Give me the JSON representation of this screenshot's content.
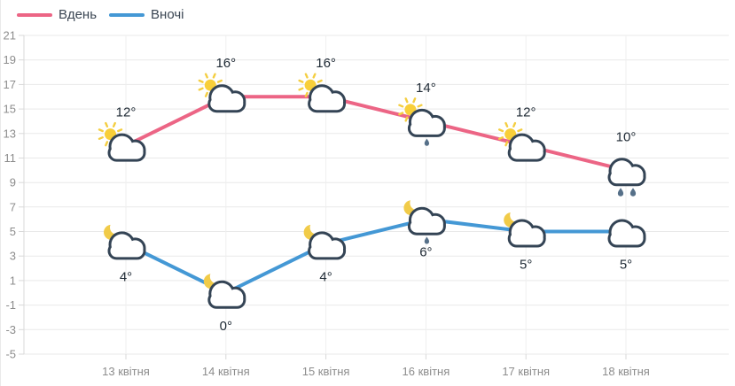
{
  "legend": {
    "items": [
      {
        "label": "Вдень",
        "color": "#ec6585"
      },
      {
        "label": "Вночі",
        "color": "#4498d5"
      }
    ]
  },
  "chart_data": {
    "type": "line",
    "title": "",
    "xlabel": "",
    "ylabel": "",
    "categories": [
      "13 квітня",
      "14 квітня",
      "15 квітня",
      "16 квітня",
      "17 квітня",
      "18 квітня"
    ],
    "series": [
      {
        "name": "Вдень",
        "color": "#ec6585",
        "values": [
          12,
          16,
          16,
          14,
          12,
          10
        ],
        "labels": [
          "12°",
          "16°",
          "16°",
          "14°",
          "12°",
          "10°"
        ],
        "icons": [
          "sun-cloud",
          "sun-cloud",
          "sun-cloud",
          "sun-cloud-drop",
          "sun-cloud",
          "cloud-two-drops"
        ],
        "label_position": "above"
      },
      {
        "name": "Вночі",
        "color": "#4498d5",
        "values": [
          4,
          0,
          4,
          6,
          5,
          5
        ],
        "labels": [
          "4°",
          "0°",
          "4°",
          "6°",
          "5°",
          "5°"
        ],
        "icons": [
          "moon-cloud",
          "moon-cloud",
          "moon-cloud",
          "moon-cloud-drop",
          "moon-cloud",
          "cloud"
        ],
        "label_position": "below"
      }
    ],
    "ylim": [
      -5,
      21
    ],
    "yticks": [
      21,
      19,
      17,
      15,
      13,
      11,
      9,
      7,
      5,
      3,
      1,
      -1,
      -3,
      -5
    ],
    "grid": true,
    "legend_position": "top-left",
    "icon_colors": {
      "cloud_stroke": "#344455",
      "cloud_fill": "#ffffff",
      "sun": "#f8cf39",
      "sun_rays": "#f4ce41",
      "moon": "#f1cb48",
      "raindrop": "#567089"
    },
    "axis_colors": {
      "grid_line": "#e9e9e9",
      "vertical_grid_line": "#efefef",
      "axis_line": "#d9d9d9",
      "tick": "#d9d9d9",
      "label": "#8c8c8c"
    }
  }
}
